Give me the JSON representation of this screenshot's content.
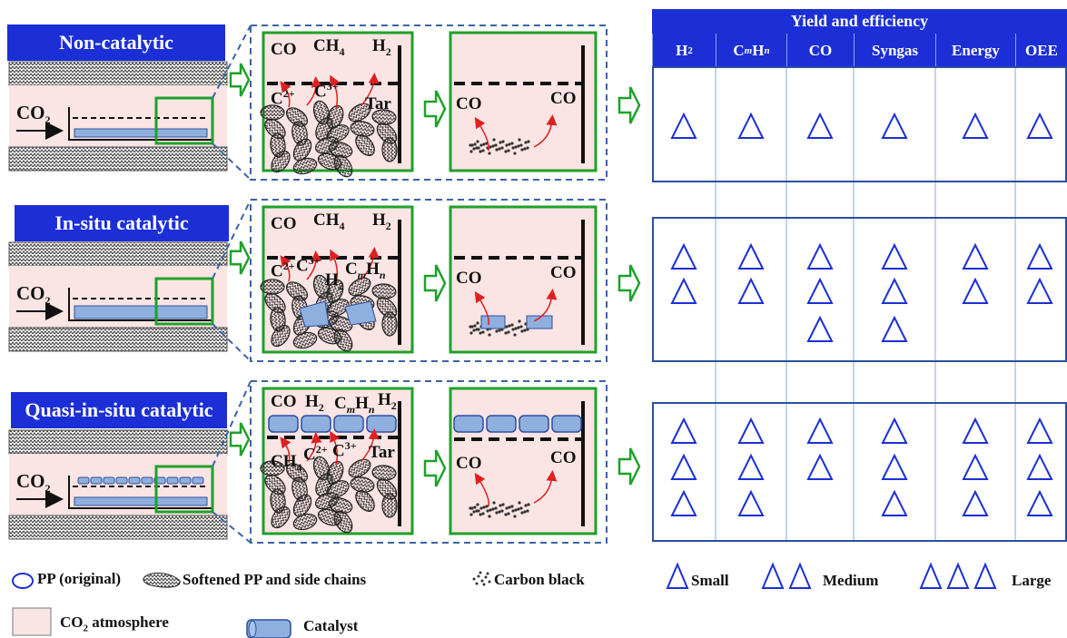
{
  "rows": [
    {
      "title": "Non-catalytic",
      "mode": "non",
      "chamber1": [
        "CO",
        "CH4",
        "H2",
        "C2+",
        "C3+",
        "Tar"
      ],
      "chamber2": [
        "CO",
        "CO"
      ]
    },
    {
      "title": "In-situ catalytic",
      "mode": "insitu",
      "chamber1": [
        "CO",
        "CH4",
        "H2",
        "C2+",
        "C3+",
        "H2",
        "CmHn"
      ],
      "chamber2": [
        "CO",
        "CO"
      ]
    },
    {
      "title": "Quasi-in-situ catalytic",
      "mode": "quasi",
      "chamber1": [
        "CO",
        "H2",
        "CmHn",
        "H2",
        "CH4",
        "C2+",
        "C3+",
        "Tar"
      ],
      "chamber2": [
        "CO",
        "CO"
      ]
    }
  ],
  "co2_label": "CO2",
  "table": {
    "title": "Yield and efficiency",
    "columns": [
      "H2",
      "CmHn",
      "CO",
      "Syngas",
      "Energy",
      "OEE"
    ],
    "ratings": [
      [
        1,
        1,
        1,
        1,
        1,
        1
      ],
      [
        2,
        2,
        3,
        3,
        2,
        2
      ],
      [
        3,
        3,
        2,
        3,
        3,
        3
      ]
    ]
  },
  "legend": {
    "pp": "PP (original)",
    "softened": "Softened PP and side chains",
    "carbon": "Carbon black",
    "atmosphere": "CO2 atmosphere",
    "catalyst": "Catalyst",
    "small": "Small",
    "medium": "Medium",
    "large": "Large"
  },
  "colors": {
    "title_blue": "#1c2fd6",
    "green": "#1fa12a",
    "pink": "#fbe4e4",
    "catalyst": "#8fb0de",
    "arrow_red": "#e02020"
  }
}
